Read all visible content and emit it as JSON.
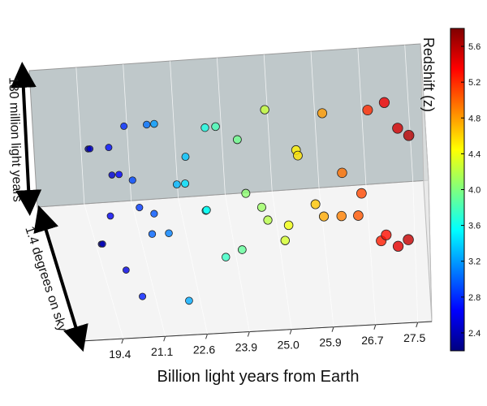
{
  "chart_data": {
    "type": "scatter3d",
    "x_label": "Billion light years from Earth",
    "height_label": "130 million light years",
    "depth_label": "1.4 degrees on sky",
    "colorbar_label": "Redshift (z)",
    "xticks": [
      19.4,
      21.1,
      22.6,
      23.9,
      {
        "value": 25.0,
        "label": "25.0"
      },
      25.9,
      26.7,
      27.5
    ],
    "depth_lim": [
      0,
      1
    ],
    "height_lim": [
      0,
      1
    ],
    "clim": [
      2.2,
      5.8
    ],
    "cticks": [
      2.4,
      2.8,
      3.2,
      3.6,
      {
        "value": 4.0,
        "label": "4.0"
      },
      4.4,
      4.8,
      5.2,
      5.6
    ],
    "colormap": [
      "#00007f",
      "#0000ff",
      "#007fff",
      "#00ffff",
      "#7fff7f",
      "#ffff00",
      "#ff7f00",
      "#ff0000",
      "#7f0000"
    ],
    "grid": true,
    "x": [
      19.0,
      19.2,
      19.3,
      19.5,
      19.7,
      19.8,
      20.0,
      20.2,
      20.3,
      20.5,
      20.6,
      20.8,
      21.0,
      21.1,
      21.3,
      21.5,
      21.7,
      21.9,
      22.1,
      22.3,
      22.5,
      22.7,
      22.9,
      23.1,
      23.3,
      23.5,
      23.7,
      23.9,
      24.1,
      24.3,
      24.5,
      24.7,
      24.9,
      25.0,
      25.2,
      25.4,
      25.5,
      25.7,
      25.9,
      26.0,
      26.2,
      26.3,
      26.5,
      26.6,
      26.8,
      26.9,
      27.0,
      27.1,
      27.2,
      27.3,
      27.4,
      27.5
    ],
    "depth": [
      0.2,
      0.6,
      0.4,
      0.8,
      0.3,
      0.1,
      0.7,
      0.5,
      0.9,
      0.2,
      0.6,
      0.4,
      0.8,
      0.15,
      0.5,
      0.7,
      0.3,
      0.9,
      0.1,
      0.6,
      0.4,
      0.8,
      0.2,
      0.5,
      0.7,
      0.35,
      0.9,
      0.15,
      0.55,
      0.75,
      0.25,
      0.45,
      0.85,
      0.1,
      0.6,
      0.4,
      0.8,
      0.2,
      0.5,
      0.7,
      0.3,
      0.9,
      0.15,
      0.55,
      0.75,
      0.35,
      0.05,
      0.65,
      0.45,
      0.85,
      0.25,
      0.6
    ],
    "height": [
      0.5,
      0.8,
      0.3,
      0.6,
      0.9,
      0.4,
      0.2,
      0.7,
      0.5,
      0.1,
      0.95,
      0.55,
      0.35,
      0.75,
      0.25,
      0.85,
      0.45,
      0.65,
      0.15,
      0.5,
      0.9,
      0.3,
      0.7,
      0.4,
      0.8,
      0.2,
      0.6,
      0.45,
      0.85,
      0.25,
      0.65,
      0.35,
      0.75,
      0.55,
      0.15,
      0.9,
      0.45,
      0.7,
      0.3,
      0.85,
      0.5,
      0.2,
      0.65,
      0.4,
      0.8,
      0.25,
      0.6,
      0.95,
      0.1,
      0.55,
      0.35,
      0.75
    ],
    "redshift": [
      2.3,
      2.35,
      2.4,
      2.45,
      2.5,
      2.55,
      2.6,
      2.65,
      2.7,
      2.75,
      2.8,
      2.85,
      2.9,
      2.95,
      3.0,
      3.05,
      3.1,
      3.2,
      3.25,
      3.3,
      3.35,
      3.45,
      3.5,
      3.6,
      3.65,
      3.75,
      3.8,
      3.9,
      3.95,
      4.05,
      4.1,
      4.2,
      4.25,
      4.3,
      4.4,
      4.5,
      4.55,
      4.65,
      4.75,
      4.8,
      4.9,
      4.95,
      5.05,
      5.1,
      5.2,
      5.25,
      5.3,
      5.4,
      5.45,
      5.5,
      5.55,
      5.6
    ]
  }
}
